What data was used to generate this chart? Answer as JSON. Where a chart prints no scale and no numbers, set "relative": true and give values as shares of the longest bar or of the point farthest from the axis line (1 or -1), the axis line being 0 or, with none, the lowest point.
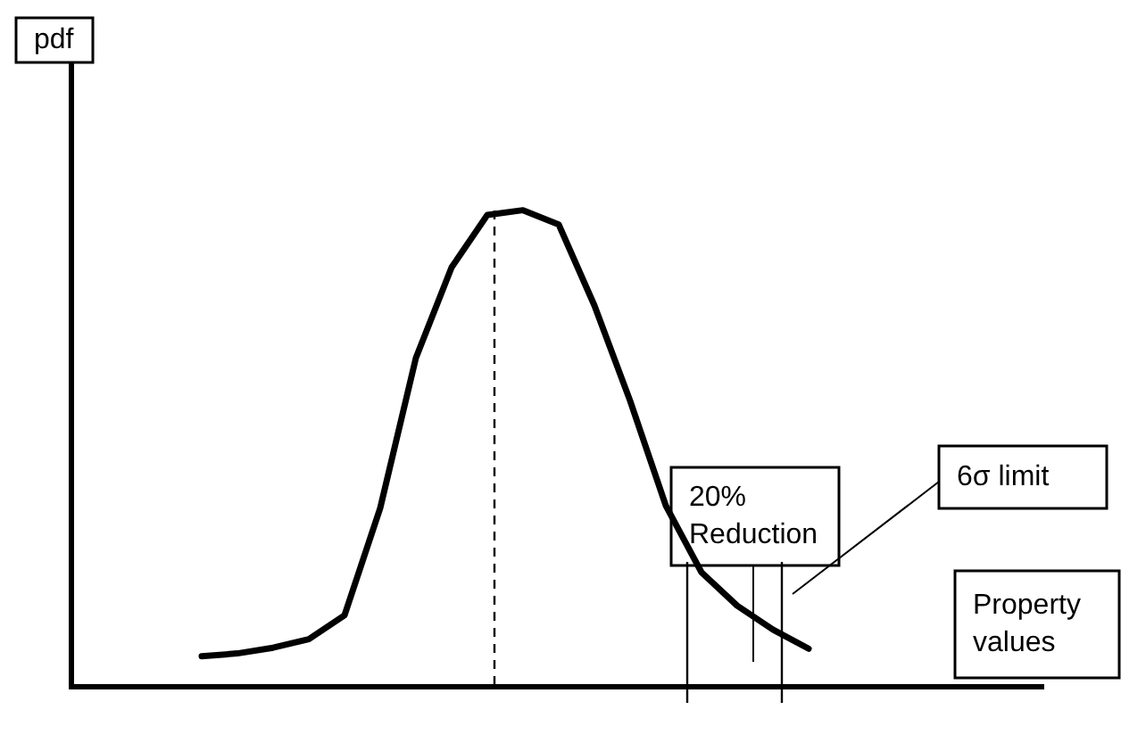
{
  "chart_data": {
    "type": "line",
    "relative": true,
    "categories": [
      null,
      null,
      null,
      null,
      null,
      null,
      null,
      null,
      null,
      null,
      null,
      null,
      null,
      null,
      null,
      null,
      null,
      null
    ],
    "series": [
      {
        "color": "#000000",
        "values": [
          0.064,
          0.07,
          0.082,
          0.1,
          0.15,
          0.375,
          0.69,
          0.88,
          0.99,
          1,
          0.97,
          0.8,
          0.6,
          0.38,
          0.24,
          0.17,
          0.12,
          0.08
        ]
      }
    ],
    "annotations": [
      "pdf",
      "20% Reduction",
      "6σ limit",
      "Property values"
    ]
  }
}
